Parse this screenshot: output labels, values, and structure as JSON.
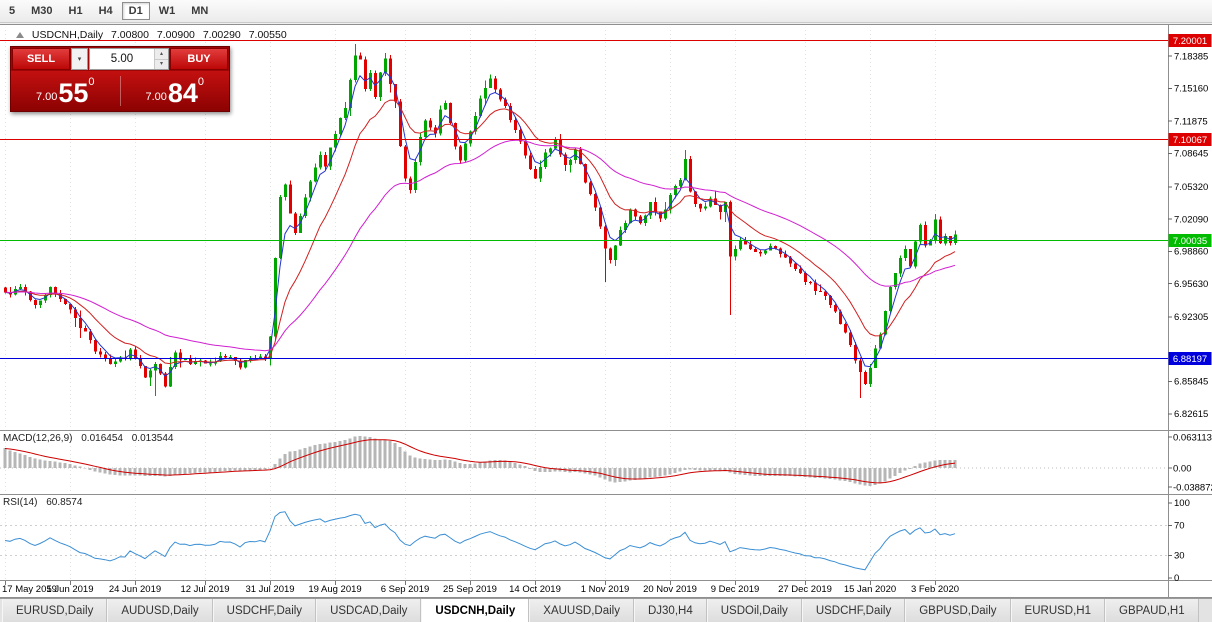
{
  "toolbar": {
    "buttons": [
      {
        "label": "5",
        "active": false
      },
      {
        "label": "M30",
        "active": false
      },
      {
        "label": "H1",
        "active": false
      },
      {
        "label": "H4",
        "active": false
      },
      {
        "label": "D1",
        "active": true
      },
      {
        "label": "W1",
        "active": false
      },
      {
        "label": "MN",
        "active": false
      }
    ]
  },
  "chart_header": {
    "symbol": "USDCNH,Daily",
    "open": "7.00800",
    "high": "7.00900",
    "low": "7.00290",
    "close": "7.00550"
  },
  "trade_panel": {
    "sell_label": "SELL",
    "buy_label": "BUY",
    "volume": "5.00",
    "sell_price": {
      "small": "7.00",
      "big": "55",
      "sup": "0"
    },
    "buy_price": {
      "small": "7.00",
      "big": "84",
      "sup": "0"
    }
  },
  "tabs": [
    {
      "label": "EURUSD,Daily",
      "active": false
    },
    {
      "label": "AUDUSD,Daily",
      "active": false
    },
    {
      "label": "USDCHF,Daily",
      "active": false
    },
    {
      "label": "USDCAD,Daily",
      "active": false
    },
    {
      "label": "USDCNH,Daily",
      "active": true
    },
    {
      "label": "XAUUSD,Daily",
      "active": false
    },
    {
      "label": "DJ30,H4",
      "active": false
    },
    {
      "label": "USDOil,Daily",
      "active": false
    },
    {
      "label": "USDCHF,Daily",
      "active": false
    },
    {
      "label": "GBPUSD,Daily",
      "active": false
    },
    {
      "label": "EURUSD,H1",
      "active": false
    },
    {
      "label": "GBPAUD,H1",
      "active": false
    }
  ],
  "chart_data": {
    "type": "candlestick",
    "symbol": "USDCNH",
    "timeframe": "Daily",
    "bars": 191,
    "last_close": 7.0055,
    "candles": {
      "up_color": "#00a600",
      "down_color": "#e00000"
    },
    "y_axis_labels": [
      "7.18385",
      "7.15160",
      "7.11875",
      "7.08645",
      "7.05320",
      "7.02090",
      "6.98860",
      "6.95630",
      "6.92305",
      "6.85845",
      "6.82615"
    ],
    "hlines": [
      {
        "price": "7.20001",
        "color": "#dd0000"
      },
      {
        "price": "7.10067",
        "color": "#dd0000"
      },
      {
        "price": "7.00035",
        "color": "#00bb00"
      },
      {
        "price": "6.88197",
        "color": "#0000dd"
      }
    ],
    "x_labels": [
      {
        "bar": 0,
        "label": "17 May 2019"
      },
      {
        "bar": 13,
        "label": "5 Jun 2019"
      },
      {
        "bar": 26,
        "label": "24 Jun 2019"
      },
      {
        "bar": 40,
        "label": "12 Jul 2019"
      },
      {
        "bar": 53,
        "label": "31 Jul 2019"
      },
      {
        "bar": 66,
        "label": "19 Aug 2019"
      },
      {
        "bar": 80,
        "label": "6 Sep 2019"
      },
      {
        "bar": 93,
        "label": "25 Sep 2019"
      },
      {
        "bar": 106,
        "label": "14 Oct 2019"
      },
      {
        "bar": 120,
        "label": "1 Nov 2019"
      },
      {
        "bar": 133,
        "label": "20 Nov 2019"
      },
      {
        "bar": 146,
        "label": "9 Dec 2019"
      },
      {
        "bar": 160,
        "label": "27 Dec 2019"
      },
      {
        "bar": 173,
        "label": "15 Jan 2020"
      },
      {
        "bar": 186,
        "label": "3 Feb 2020"
      }
    ],
    "anchors": [
      [
        0,
        6.946
      ],
      [
        3,
        6.953
      ],
      [
        6,
        6.936
      ],
      [
        9,
        6.951
      ],
      [
        13,
        6.931
      ],
      [
        16,
        6.906
      ],
      [
        19,
        6.884
      ],
      [
        22,
        6.876
      ],
      [
        25,
        6.888
      ],
      [
        28,
        6.863
      ],
      [
        30,
        6.873
      ],
      [
        32,
        6.856
      ],
      [
        34,
        6.885
      ],
      [
        37,
        6.879
      ],
      [
        40,
        6.877
      ],
      [
        44,
        6.884
      ],
      [
        47,
        6.875
      ],
      [
        50,
        6.884
      ],
      [
        52,
        6.881
      ],
      [
        53,
        6.901
      ],
      [
        54,
        6.98
      ],
      [
        55,
        7.044
      ],
      [
        56,
        7.058
      ],
      [
        57,
        7.028
      ],
      [
        58,
        7.008
      ],
      [
        59,
        7.026
      ],
      [
        61,
        7.058
      ],
      [
        63,
        7.088
      ],
      [
        64,
        7.072
      ],
      [
        66,
        7.108
      ],
      [
        68,
        7.135
      ],
      [
        69,
        7.16
      ],
      [
        70,
        7.183
      ],
      [
        71,
        7.178
      ],
      [
        72,
        7.152
      ],
      [
        73,
        7.168
      ],
      [
        74,
        7.145
      ],
      [
        75,
        7.17
      ],
      [
        76,
        7.182
      ],
      [
        77,
        7.158
      ],
      [
        78,
        7.138
      ],
      [
        79,
        7.095
      ],
      [
        80,
        7.062
      ],
      [
        81,
        7.048
      ],
      [
        82,
        7.08
      ],
      [
        83,
        7.102
      ],
      [
        84,
        7.118
      ],
      [
        86,
        7.108
      ],
      [
        87,
        7.128
      ],
      [
        88,
        7.14
      ],
      [
        89,
        7.118
      ],
      [
        90,
        7.092
      ],
      [
        91,
        7.078
      ],
      [
        92,
        7.098
      ],
      [
        93,
        7.108
      ],
      [
        95,
        7.14
      ],
      [
        97,
        7.162
      ],
      [
        98,
        7.148
      ],
      [
        100,
        7.132
      ],
      [
        102,
        7.11
      ],
      [
        104,
        7.082
      ],
      [
        106,
        7.062
      ],
      [
        108,
        7.085
      ],
      [
        110,
        7.098
      ],
      [
        112,
        7.072
      ],
      [
        114,
        7.088
      ],
      [
        116,
        7.06
      ],
      [
        118,
        7.035
      ],
      [
        120,
        6.99
      ],
      [
        121,
        6.982
      ],
      [
        123,
        7.008
      ],
      [
        125,
        7.028
      ],
      [
        127,
        7.016
      ],
      [
        129,
        7.036
      ],
      [
        131,
        7.022
      ],
      [
        133,
        7.042
      ],
      [
        135,
        7.06
      ],
      [
        136,
        7.082
      ],
      [
        137,
        7.048
      ],
      [
        139,
        7.03
      ],
      [
        141,
        7.04
      ],
      [
        143,
        7.026
      ],
      [
        144,
        7.035
      ],
      [
        145,
        6.982
      ],
      [
        147,
        7.002
      ],
      [
        149,
        6.992
      ],
      [
        151,
        6.986
      ],
      [
        153,
        6.996
      ],
      [
        155,
        6.985
      ],
      [
        157,
        6.975
      ],
      [
        159,
        6.965
      ],
      [
        161,
        6.956
      ],
      [
        163,
        6.948
      ],
      [
        165,
        6.936
      ],
      [
        167,
        6.918
      ],
      [
        169,
        6.895
      ],
      [
        171,
        6.866
      ],
      [
        172,
        6.857
      ],
      [
        173,
        6.873
      ],
      [
        174,
        6.89
      ],
      [
        175,
        6.908
      ],
      [
        176,
        6.932
      ],
      [
        177,
        6.954
      ],
      [
        178,
        6.966
      ],
      [
        179,
        6.982
      ],
      [
        180,
        6.992
      ],
      [
        181,
        6.976
      ],
      [
        182,
        6.998
      ],
      [
        183,
        7.016
      ],
      [
        184,
        6.994
      ],
      [
        185,
        7.0
      ],
      [
        186,
        7.018
      ],
      [
        187,
        6.996
      ],
      [
        188,
        7.004
      ],
      [
        189,
        6.998
      ],
      [
        190,
        7.0055
      ]
    ],
    "special_wicks": [
      {
        "bar": 30,
        "low": 6.844
      },
      {
        "bar": 70,
        "high": 7.196
      },
      {
        "bar": 120,
        "low": 6.958
      },
      {
        "bar": 136,
        "high": 7.09
      },
      {
        "bar": 145,
        "low": 6.925
      },
      {
        "bar": 171,
        "low": 6.842
      },
      {
        "bar": 186,
        "high": 7.026
      }
    ],
    "moving_averages": [
      {
        "type": "EMA",
        "period": 4,
        "color": "#2233cc"
      },
      {
        "type": "EMA",
        "period": 13,
        "color": "#d02020"
      },
      {
        "type": "EMA",
        "period": 40,
        "color": "#d020d0"
      }
    ],
    "indicators": {
      "macd": {
        "label": "MACD(12,26,9)",
        "value_main": "0.016454",
        "value_signal": "0.013544",
        "axis_labels": [
          "0.063113",
          "0.00",
          "-0.038872"
        ],
        "ylim": [
          -0.0486,
          0.0736
        ],
        "params": {
          "fast": 12,
          "slow": 26,
          "signal": 9
        },
        "histogram_color": "#b6b6b6",
        "signal_color": "#cc0000"
      },
      "rsi": {
        "label": "RSI(14)",
        "value": "60.8574",
        "axis_labels": [
          "100",
          "70",
          "30",
          "0"
        ],
        "levels": [
          70,
          30
        ],
        "period": 14,
        "line_color": "#3b8fd4"
      }
    }
  }
}
